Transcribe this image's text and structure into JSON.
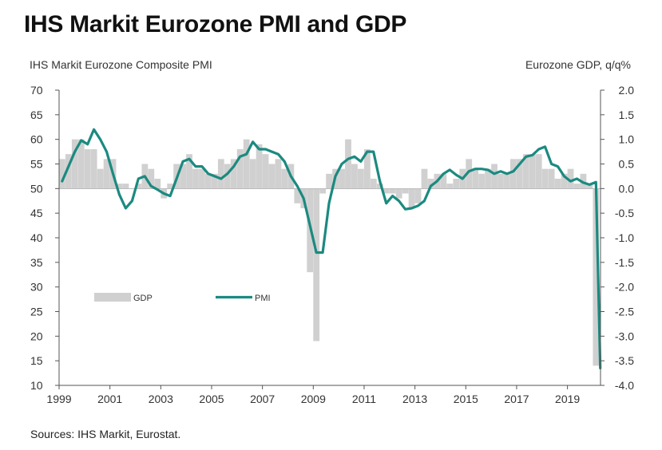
{
  "title": "IHS Markit Eurozone PMI and GDP",
  "source": "Sources: IHS Markit, Eurostat.",
  "colors": {
    "pmi": "#1b8a80",
    "gdp": "#d0d0d0",
    "axis": "#555555"
  },
  "chart_data": {
    "type": "bar+line",
    "left_axis": {
      "label": "IHS Markit Eurozone Composite PMI",
      "min": 10,
      "max": 70,
      "step": 5,
      "ticks": [
        "70",
        "65",
        "60",
        "55",
        "50",
        "45",
        "40",
        "35",
        "30",
        "25",
        "20",
        "15",
        "10"
      ]
    },
    "right_axis": {
      "label": "Eurozone GDP, q/q%",
      "min": -4.0,
      "max": 2.0,
      "step": 0.5,
      "ticks": [
        "2.0",
        "1.5",
        "1.0",
        "0.5",
        "0.0",
        "-0.5",
        "-1.0",
        "-1.5",
        "-2.0",
        "-2.5",
        "-3.0",
        "-3.5",
        "-4.0"
      ]
    },
    "x_axis": {
      "min": 1999,
      "max": 2020.3,
      "tick_labels": [
        "1999",
        "2001",
        "2003",
        "2005",
        "2007",
        "2009",
        "2011",
        "2013",
        "2015",
        "2017",
        "2019"
      ],
      "tick_values": [
        1999,
        2001,
        2003,
        2005,
        2007,
        2009,
        2011,
        2013,
        2015,
        2017,
        2019
      ]
    },
    "legend": {
      "position": "lower-left",
      "gdp_label": "GDP",
      "pmi_label": "PMI"
    },
    "grid": false,
    "series": [
      {
        "name": "GDP",
        "axis": "right",
        "kind": "bar",
        "x": [
          1999.0,
          1999.25,
          1999.5,
          1999.75,
          2000.0,
          2000.25,
          2000.5,
          2000.75,
          2001.0,
          2001.25,
          2001.5,
          2001.75,
          2002.0,
          2002.25,
          2002.5,
          2002.75,
          2003.0,
          2003.25,
          2003.5,
          2003.75,
          2004.0,
          2004.25,
          2004.5,
          2004.75,
          2005.0,
          2005.25,
          2005.5,
          2005.75,
          2006.0,
          2006.25,
          2006.5,
          2006.75,
          2007.0,
          2007.25,
          2007.5,
          2007.75,
          2008.0,
          2008.25,
          2008.5,
          2008.75,
          2009.0,
          2009.25,
          2009.5,
          2009.75,
          2010.0,
          2010.25,
          2010.5,
          2010.75,
          2011.0,
          2011.25,
          2011.5,
          2011.75,
          2012.0,
          2012.25,
          2012.5,
          2012.75,
          2013.0,
          2013.25,
          2013.5,
          2013.75,
          2014.0,
          2014.25,
          2014.5,
          2014.75,
          2015.0,
          2015.25,
          2015.5,
          2015.75,
          2016.0,
          2016.25,
          2016.5,
          2016.75,
          2017.0,
          2017.25,
          2017.5,
          2017.75,
          2018.0,
          2018.25,
          2018.5,
          2018.75,
          2019.0,
          2019.25,
          2019.5,
          2019.75,
          2020.0
        ],
        "values": [
          0.6,
          0.7,
          1.0,
          1.0,
          0.8,
          0.8,
          0.4,
          0.6,
          0.6,
          0.1,
          0.1,
          0.0,
          0.1,
          0.5,
          0.4,
          0.2,
          -0.2,
          0.1,
          0.5,
          0.5,
          0.7,
          0.4,
          0.4,
          0.3,
          0.3,
          0.6,
          0.5,
          0.6,
          0.8,
          1.0,
          0.6,
          0.9,
          0.7,
          0.5,
          0.6,
          0.4,
          0.5,
          -0.3,
          -0.4,
          -1.7,
          -3.1,
          -0.1,
          0.3,
          0.4,
          0.4,
          1.0,
          0.5,
          0.4,
          0.8,
          0.2,
          0.1,
          -0.1,
          -0.1,
          -0.2,
          -0.1,
          -0.4,
          -0.3,
          0.4,
          0.2,
          0.3,
          0.3,
          0.1,
          0.2,
          0.4,
          0.6,
          0.4,
          0.3,
          0.4,
          0.5,
          0.3,
          0.3,
          0.6,
          0.6,
          0.7,
          0.7,
          0.7,
          0.4,
          0.4,
          0.2,
          0.3,
          0.4,
          0.1,
          0.3,
          0.1,
          -3.6
        ]
      },
      {
        "name": "PMI",
        "axis": "left",
        "kind": "line",
        "x": [
          1999.0,
          1999.25,
          1999.5,
          1999.75,
          2000.0,
          2000.25,
          2000.5,
          2000.75,
          2001.0,
          2001.25,
          2001.5,
          2001.75,
          2002.0,
          2002.25,
          2002.5,
          2002.75,
          2003.0,
          2003.25,
          2003.5,
          2003.75,
          2004.0,
          2004.25,
          2004.5,
          2004.75,
          2005.0,
          2005.25,
          2005.5,
          2005.75,
          2006.0,
          2006.25,
          2006.5,
          2006.75,
          2007.0,
          2007.25,
          2007.5,
          2007.75,
          2008.0,
          2008.25,
          2008.5,
          2008.75,
          2009.0,
          2009.25,
          2009.5,
          2009.75,
          2010.0,
          2010.25,
          2010.5,
          2010.75,
          2011.0,
          2011.25,
          2011.5,
          2011.75,
          2012.0,
          2012.25,
          2012.5,
          2012.75,
          2013.0,
          2013.25,
          2013.5,
          2013.75,
          2014.0,
          2014.25,
          2014.5,
          2014.75,
          2015.0,
          2015.25,
          2015.5,
          2015.75,
          2016.0,
          2016.25,
          2016.5,
          2016.75,
          2017.0,
          2017.25,
          2017.5,
          2017.75,
          2018.0,
          2018.25,
          2018.5,
          2018.75,
          2019.0,
          2019.25,
          2019.5,
          2019.75,
          2020.0,
          2020.17
        ],
        "values": [
          51.5,
          54.5,
          57.5,
          59.8,
          59.0,
          62.0,
          60.0,
          57.5,
          53.0,
          48.8,
          46.0,
          47.5,
          52.0,
          52.5,
          50.5,
          49.8,
          49.0,
          48.5,
          52.0,
          55.5,
          56.0,
          54.5,
          54.5,
          53.0,
          52.5,
          52.0,
          53.0,
          54.5,
          56.5,
          57.0,
          59.5,
          58.0,
          58.0,
          57.5,
          57.0,
          55.5,
          52.5,
          50.5,
          48.0,
          42.5,
          37.0,
          37.0,
          47.0,
          52.5,
          55.0,
          56.0,
          56.5,
          55.5,
          57.5,
          57.5,
          51.5,
          47.0,
          48.5,
          47.5,
          45.8,
          46.0,
          46.5,
          47.5,
          50.5,
          51.5,
          53.0,
          53.8,
          52.8,
          52.0,
          53.5,
          54.0,
          54.0,
          53.8,
          53.0,
          53.5,
          53.0,
          53.5,
          55.0,
          56.5,
          56.8,
          58.0,
          58.5,
          55.0,
          54.5,
          52.5,
          51.5,
          52.0,
          51.2,
          50.8,
          51.3,
          13.5
        ]
      }
    ]
  }
}
